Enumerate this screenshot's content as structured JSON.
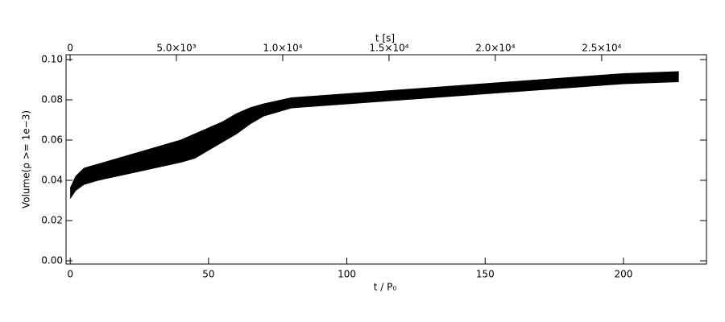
{
  "chart_data": {
    "type": "band",
    "xlabel": "t / P₀",
    "x2label": "t [s]",
    "ylabel": "Volume(ρ >= 1e−3)",
    "color": "#000000",
    "x": [
      0,
      2,
      5,
      10,
      20,
      30,
      40,
      45,
      50,
      55,
      60,
      65,
      70,
      80,
      90,
      100,
      120,
      140,
      160,
      180,
      200,
      220
    ],
    "upper": [
      0.036,
      0.042,
      0.046,
      0.048,
      0.052,
      0.056,
      0.06,
      0.063,
      0.066,
      0.069,
      0.073,
      0.076,
      0.078,
      0.081,
      0.082,
      0.083,
      0.085,
      0.087,
      0.089,
      0.091,
      0.093,
      0.094
    ],
    "lower": [
      0.031,
      0.035,
      0.038,
      0.04,
      0.043,
      0.046,
      0.049,
      0.051,
      0.055,
      0.059,
      0.063,
      0.068,
      0.072,
      0.076,
      0.077,
      0.078,
      0.08,
      0.082,
      0.084,
      0.086,
      0.088,
      0.089
    ],
    "xlim": [
      -1.5,
      230
    ],
    "xticks": [
      0,
      50,
      100,
      150,
      200
    ],
    "x2lim": [
      -190,
      29930
    ],
    "x2ticks": [
      0,
      {
        "value": 5000,
        "label": "5.0×10³"
      },
      {
        "value": 10000,
        "label": "1.0×10⁴"
      },
      {
        "value": 15000,
        "label": "1.5×10⁴"
      },
      {
        "value": 20000,
        "label": "2.0×10⁴"
      },
      {
        "value": 25000,
        "label": "2.5×10⁴"
      }
    ],
    "ylim": [
      -0.0016,
      0.1024
    ],
    "yticks": [
      {
        "value": 0,
        "label": "0.00"
      },
      0.02,
      0.04,
      0.06,
      0.08,
      {
        "value": 0.1,
        "label": "0.10"
      }
    ]
  }
}
